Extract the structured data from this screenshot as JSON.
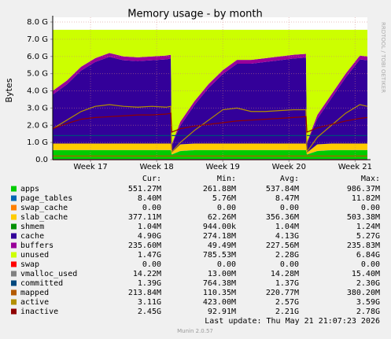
{
  "chart_data": {
    "type": "area",
    "title": "Memory usage - by month",
    "y_label": "Bytes",
    "side_text": "RRDTOOL / TOBI OETIKER",
    "footer": "Last update: Thu May 21 21:07:23 2026",
    "version": "Munin 2.0.57",
    "legend_columns": [
      "Cur:",
      "Min:",
      "Avg:",
      "Max:"
    ],
    "grid": true,
    "ylim": [
      0,
      8
    ],
    "yticks": [
      {
        "value": 0,
        "label": "0.0"
      },
      {
        "value": 1,
        "label": "1.0 G"
      },
      {
        "value": 2,
        "label": "2.0 G"
      },
      {
        "value": 3,
        "label": "3.0 G"
      },
      {
        "value": 4,
        "label": "4.0 G"
      },
      {
        "value": 5,
        "label": "5.0 G"
      },
      {
        "value": 6,
        "label": "6.0 G"
      },
      {
        "value": 7,
        "label": "7.0 G"
      },
      {
        "value": 8,
        "label": "8.0 G"
      }
    ],
    "xlim": [
      0,
      33.3
    ],
    "xticks": [
      {
        "value": 4,
        "label": "Week 17"
      },
      {
        "value": 11,
        "label": "Week 18"
      },
      {
        "value": 18,
        "label": "Week 19"
      },
      {
        "value": 25,
        "label": "Week 20"
      },
      {
        "value": 32,
        "label": "Week 21"
      }
    ],
    "x": [
      0,
      1.5,
      3,
      4.5,
      6,
      7.5,
      9,
      10.5,
      12,
      12.5,
      12.6,
      13.5,
      15,
      16.5,
      18,
      19.5,
      21,
      22.5,
      24,
      25.5,
      26.8,
      26.9,
      28,
      29.5,
      31,
      32.5,
      33.3
    ],
    "series": [
      {
        "name": "apps",
        "color": "#00cc00",
        "draw": "area",
        "stats": [
          "551.27M",
          "261.88M",
          "537.84M",
          "986.37M"
        ],
        "values": [
          0.55,
          0.55,
          0.55,
          0.55,
          0.55,
          0.55,
          0.55,
          0.55,
          0.55,
          0.55,
          0.3,
          0.5,
          0.55,
          0.55,
          0.55,
          0.55,
          0.55,
          0.55,
          0.55,
          0.55,
          0.55,
          0.3,
          0.5,
          0.55,
          0.55,
          0.55,
          0.55
        ]
      },
      {
        "name": "page_tables",
        "color": "#0066b3",
        "draw": "area",
        "stats": [
          "8.40M",
          "5.76M",
          "8.47M",
          "11.82M"
        ],
        "values": [
          0.008,
          0.008,
          0.008,
          0.008,
          0.008,
          0.008,
          0.008,
          0.008,
          0.008,
          0.008,
          0.008,
          0.008,
          0.008,
          0.008,
          0.008,
          0.008,
          0.008,
          0.008,
          0.008,
          0.008,
          0.008,
          0.008,
          0.008,
          0.008,
          0.008,
          0.008,
          0.008
        ]
      },
      {
        "name": "swap_cache",
        "color": "#ff8000",
        "draw": "area",
        "stats": [
          "0.00",
          "0.00",
          "0.00",
          "0.00"
        ],
        "values": [
          0,
          0,
          0,
          0,
          0,
          0,
          0,
          0,
          0,
          0,
          0,
          0,
          0,
          0,
          0,
          0,
          0,
          0,
          0,
          0,
          0,
          0,
          0,
          0,
          0,
          0,
          0
        ]
      },
      {
        "name": "slab_cache",
        "color": "#ffcc00",
        "draw": "area",
        "stats": [
          "377.11M",
          "62.26M",
          "356.36M",
          "503.38M"
        ],
        "values": [
          0.38,
          0.38,
          0.38,
          0.38,
          0.38,
          0.38,
          0.38,
          0.38,
          0.38,
          0.38,
          0.1,
          0.38,
          0.38,
          0.38,
          0.38,
          0.38,
          0.38,
          0.38,
          0.38,
          0.38,
          0.38,
          0.1,
          0.38,
          0.38,
          0.38,
          0.38,
          0.38
        ]
      },
      {
        "name": "shmem",
        "color": "#008f00",
        "draw": "area",
        "stats": [
          "1.04M",
          "944.00k",
          "1.04M",
          "1.24M"
        ],
        "values": [
          0.001,
          0.001,
          0.001,
          0.001,
          0.001,
          0.001,
          0.001,
          0.001,
          0.001,
          0.001,
          0.001,
          0.001,
          0.001,
          0.001,
          0.001,
          0.001,
          0.001,
          0.001,
          0.001,
          0.001,
          0.001,
          0.001,
          0.001,
          0.001,
          0.001,
          0.001,
          0.001
        ]
      },
      {
        "name": "cache",
        "color": "#330099",
        "draw": "area",
        "stats": [
          "4.90G",
          "274.18M",
          "4.13G",
          "5.27G"
        ],
        "values": [
          2.84,
          3.44,
          4.24,
          4.74,
          5.04,
          4.84,
          4.79,
          4.84,
          4.89,
          4.94,
          0.44,
          1.09,
          2.24,
          3.24,
          4.04,
          4.64,
          4.64,
          4.74,
          4.84,
          4.94,
          4.99,
          0.54,
          1.49,
          2.64,
          3.84,
          4.89,
          4.84
        ]
      },
      {
        "name": "buffers",
        "color": "#990099",
        "draw": "area",
        "stats": [
          "235.60M",
          "49.49M",
          "227.56M",
          "235.83M"
        ],
        "values": [
          0.22,
          0.22,
          0.22,
          0.22,
          0.22,
          0.22,
          0.22,
          0.22,
          0.22,
          0.22,
          0.05,
          0.22,
          0.22,
          0.22,
          0.22,
          0.22,
          0.22,
          0.22,
          0.22,
          0.22,
          0.22,
          0.05,
          0.22,
          0.22,
          0.22,
          0.22,
          0.22
        ]
      },
      {
        "name": "unused",
        "color": "#ccff00",
        "draw": "area",
        "stats": [
          "1.47G",
          "785.53M",
          "2.28G",
          "6.84G"
        ],
        "values": [
          3.55,
          2.95,
          2.15,
          1.65,
          1.35,
          1.55,
          1.6,
          1.55,
          1.5,
          1.45,
          6.65,
          5.35,
          4.15,
          3.15,
          2.35,
          1.75,
          1.75,
          1.65,
          1.55,
          1.45,
          1.4,
          6.55,
          4.95,
          3.75,
          2.55,
          1.5,
          1.55
        ]
      },
      {
        "name": "swap",
        "color": "#ff0000",
        "draw": "line",
        "stats": [
          "0.00",
          "0.00",
          "0.00",
          "0.00"
        ],
        "values": [
          0,
          0,
          0,
          0,
          0,
          0,
          0,
          0,
          0,
          0,
          0,
          0,
          0,
          0,
          0,
          0,
          0,
          0,
          0,
          0,
          0,
          0,
          0,
          0,
          0,
          0,
          0
        ]
      },
      {
        "name": "vmalloc_used",
        "color": "#808080",
        "draw": "line",
        "stats": [
          "14.22M",
          "13.00M",
          "14.28M",
          "15.40M"
        ],
        "values": [
          0.014,
          0.014,
          0.014,
          0.014,
          0.014,
          0.014,
          0.014,
          0.014,
          0.014,
          0.014,
          0.014,
          0.014,
          0.014,
          0.014,
          0.014,
          0.014,
          0.014,
          0.014,
          0.014,
          0.014,
          0.014,
          0.014,
          0.014,
          0.014,
          0.014,
          0.014,
          0.014
        ]
      },
      {
        "name": "committed",
        "color": "#00487d",
        "draw": "line",
        "stats": [
          "1.39G",
          "764.38M",
          "1.37G",
          "2.30G"
        ],
        "values": [
          1.4,
          1.4,
          1.4,
          1.4,
          1.4,
          1.4,
          1.4,
          1.4,
          1.4,
          1.4,
          1.4,
          1.4,
          1.4,
          1.4,
          1.4,
          1.4,
          1.4,
          1.4,
          1.4,
          1.4,
          1.4,
          1.4,
          1.4,
          1.4,
          1.4,
          1.4,
          1.4
        ]
      },
      {
        "name": "mapped",
        "color": "#b35a00",
        "draw": "line",
        "stats": [
          "213.84M",
          "110.35M",
          "220.77M",
          "380.20M"
        ],
        "values": [
          0.21,
          0.21,
          0.21,
          0.21,
          0.21,
          0.21,
          0.21,
          0.21,
          0.21,
          0.21,
          0.21,
          0.21,
          0.21,
          0.21,
          0.21,
          0.21,
          0.21,
          0.21,
          0.21,
          0.21,
          0.21,
          0.21,
          0.21,
          0.21,
          0.21,
          0.21,
          0.21
        ]
      },
      {
        "name": "active",
        "color": "#b38f00",
        "draw": "line",
        "stats": [
          "3.11G",
          "423.00M",
          "2.57G",
          "3.59G"
        ],
        "values": [
          1.8,
          2.3,
          2.8,
          3.1,
          3.2,
          3.1,
          3.05,
          3.1,
          3.05,
          3.1,
          0.45,
          1.0,
          1.7,
          2.3,
          2.9,
          3.0,
          2.8,
          2.8,
          2.85,
          2.9,
          2.9,
          0.45,
          1.3,
          2.0,
          2.7,
          3.2,
          3.1
        ]
      },
      {
        "name": "inactive",
        "color": "#8f0000",
        "draw": "line",
        "stats": [
          "2.45G",
          "92.91M",
          "2.21G",
          "2.78G"
        ],
        "values": [
          1.8,
          2.1,
          2.35,
          2.45,
          2.5,
          2.55,
          2.6,
          2.6,
          2.65,
          2.7,
          1.6,
          1.8,
          1.95,
          2.05,
          2.15,
          2.25,
          2.3,
          2.35,
          2.4,
          2.45,
          2.5,
          1.6,
          1.85,
          2.05,
          2.25,
          2.4,
          2.45
        ]
      }
    ]
  }
}
